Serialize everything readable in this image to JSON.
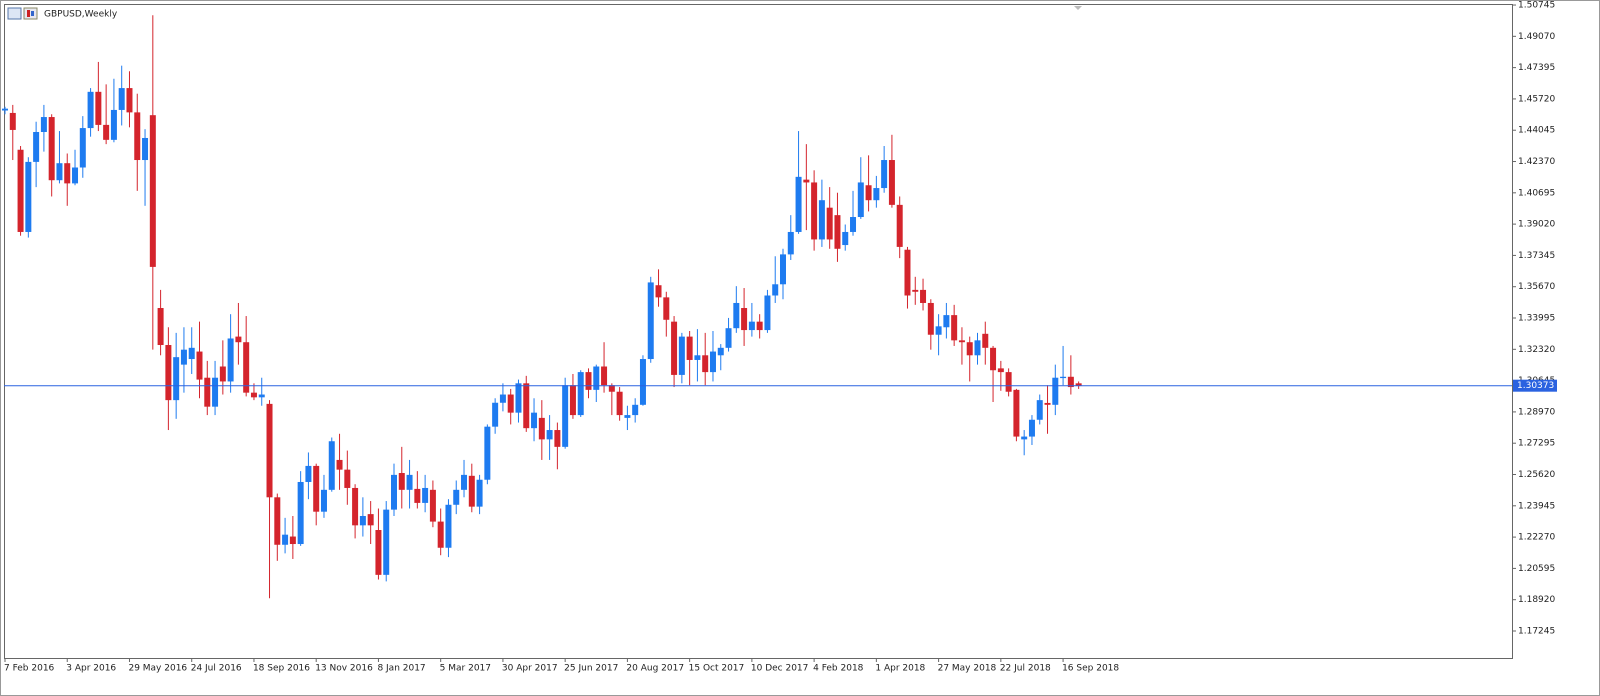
{
  "chart_data": {
    "type": "candlestick",
    "title": "GBPUSD,Weekly",
    "categories": [
      "7 Feb 2016",
      null,
      null,
      null,
      null,
      null,
      null,
      null,
      "3 Apr 2016",
      null,
      null,
      null,
      null,
      null,
      null,
      null,
      "29 May 2016",
      null,
      null,
      null,
      null,
      null,
      null,
      null,
      "24 Jul 2016",
      null,
      null,
      null,
      null,
      null,
      null,
      null,
      "18 Sep 2016",
      null,
      null,
      null,
      null,
      null,
      null,
      null,
      "13 Nov 2016",
      null,
      null,
      null,
      null,
      null,
      null,
      null,
      "8 Jan 2017",
      null,
      null,
      null,
      null,
      null,
      null,
      null,
      "5 Mar 2017",
      null,
      null,
      null,
      null,
      null,
      null,
      null,
      "30 Apr 2017",
      null,
      null,
      null,
      null,
      null,
      null,
      null,
      "25 Jun 2017",
      null,
      null,
      null,
      null,
      null,
      null,
      null,
      "20 Aug 2017",
      null,
      null,
      null,
      null,
      null,
      null,
      null,
      "15 Oct 2017",
      null,
      null,
      null,
      null,
      null,
      null,
      null,
      "10 Dec 2017",
      null,
      null,
      null,
      null,
      null,
      null,
      null,
      "4 Feb 2018",
      null,
      null,
      null,
      null,
      null,
      null,
      null,
      "1 Apr 2018",
      null,
      null,
      null,
      null,
      null,
      null,
      null,
      "27 May 2018",
      null,
      null,
      null,
      null,
      null,
      null,
      null,
      "22 Jul 2018",
      null,
      null,
      null,
      null,
      null,
      null,
      null,
      "16 Sep 2018",
      null,
      null
    ],
    "ohlc": [
      [
        1.451,
        1.453,
        1.449,
        1.452
      ],
      [
        1.4497,
        1.454,
        1.4245,
        1.4406
      ],
      [
        1.43,
        1.432,
        1.384,
        1.386
      ],
      [
        1.386,
        1.426,
        1.383,
        1.4235
      ],
      [
        1.4235,
        1.445,
        1.41,
        1.4395
      ],
      [
        1.4395,
        1.454,
        1.429,
        1.4475
      ],
      [
        1.4475,
        1.449,
        1.405,
        1.4137
      ],
      [
        1.4137,
        1.44,
        1.412,
        1.4228
      ],
      [
        1.4228,
        1.428,
        1.4,
        1.412
      ],
      [
        1.412,
        1.43,
        1.411,
        1.4205
      ],
      [
        1.4205,
        1.448,
        1.415,
        1.4416
      ],
      [
        1.4416,
        1.463,
        1.437,
        1.461
      ],
      [
        1.461,
        1.477,
        1.44,
        1.4433
      ],
      [
        1.4433,
        1.465,
        1.433,
        1.4353
      ],
      [
        1.4353,
        1.468,
        1.434,
        1.4513
      ],
      [
        1.4513,
        1.475,
        1.443,
        1.463
      ],
      [
        1.463,
        1.472,
        1.442,
        1.45
      ],
      [
        1.45,
        1.46,
        1.408,
        1.4245
      ],
      [
        1.4245,
        1.441,
        1.4,
        1.4363
      ],
      [
        1.4485,
        1.502,
        1.323,
        1.3673
      ],
      [
        1.3453,
        1.355,
        1.32,
        1.3255
      ],
      [
        1.3255,
        1.335,
        1.28,
        1.296
      ],
      [
        1.296,
        1.332,
        1.286,
        1.319
      ],
      [
        1.315,
        1.335,
        1.3,
        1.323
      ],
      [
        1.318,
        1.335,
        1.31,
        1.324
      ],
      [
        1.322,
        1.338,
        1.297,
        1.307
      ],
      [
        1.308,
        1.317,
        1.288,
        1.2925
      ],
      [
        1.2925,
        1.317,
        1.288,
        1.308
      ],
      [
        1.314,
        1.328,
        1.299,
        1.306
      ],
      [
        1.306,
        1.342,
        1.3,
        1.329
      ],
      [
        1.33,
        1.348,
        1.315,
        1.327
      ],
      [
        1.327,
        1.341,
        1.298,
        1.3
      ],
      [
        1.3,
        1.305,
        1.296,
        1.2975
      ],
      [
        1.2975,
        1.308,
        1.293,
        1.299
      ],
      [
        1.294,
        1.296,
        1.19,
        1.244
      ],
      [
        1.244,
        1.246,
        1.21,
        1.2186
      ],
      [
        1.2186,
        1.233,
        1.214,
        1.224
      ],
      [
        1.223,
        1.234,
        1.211,
        1.219
      ],
      [
        1.219,
        1.258,
        1.218,
        1.2522
      ],
      [
        1.2522,
        1.268,
        1.243,
        1.2608
      ],
      [
        1.2608,
        1.262,
        1.229,
        1.2363
      ],
      [
        1.2363,
        1.256,
        1.233,
        1.248
      ],
      [
        1.248,
        1.276,
        1.247,
        1.274
      ],
      [
        1.264,
        1.278,
        1.248,
        1.2588
      ],
      [
        1.2588,
        1.269,
        1.24,
        1.249
      ],
      [
        1.249,
        1.251,
        1.222,
        1.229
      ],
      [
        1.229,
        1.244,
        1.223,
        1.234
      ],
      [
        1.235,
        1.242,
        1.219,
        1.229
      ],
      [
        1.2265,
        1.238,
        1.2,
        1.2025
      ],
      [
        1.2025,
        1.242,
        1.199,
        1.2374
      ],
      [
        1.2374,
        1.262,
        1.234,
        1.256
      ],
      [
        1.257,
        1.271,
        1.238,
        1.248
      ],
      [
        1.248,
        1.264,
        1.238,
        1.256
      ],
      [
        1.2485,
        1.258,
        1.238,
        1.241
      ],
      [
        1.241,
        1.256,
        1.236,
        1.249
      ],
      [
        1.248,
        1.253,
        1.228,
        1.231
      ],
      [
        1.231,
        1.238,
        1.213,
        1.217
      ],
      [
        1.217,
        1.243,
        1.212,
        1.24
      ],
      [
        1.24,
        1.253,
        1.235,
        1.248
      ],
      [
        1.248,
        1.264,
        1.244,
        1.256
      ],
      [
        1.2555,
        1.262,
        1.236,
        1.239
      ],
      [
        1.239,
        1.256,
        1.235,
        1.2534
      ],
      [
        1.2534,
        1.283,
        1.251,
        1.2818
      ],
      [
        1.2818,
        1.297,
        1.278,
        1.2946
      ],
      [
        1.2946,
        1.305,
        1.29,
        1.299
      ],
      [
        1.299,
        1.302,
        1.283,
        1.2893
      ],
      [
        1.2893,
        1.307,
        1.284,
        1.305
      ],
      [
        1.305,
        1.309,
        1.279,
        1.281
      ],
      [
        1.281,
        1.297,
        1.274,
        1.2893
      ],
      [
        1.2865,
        1.296,
        1.264,
        1.275
      ],
      [
        1.275,
        1.288,
        1.264,
        1.28
      ],
      [
        1.28,
        1.284,
        1.259,
        1.271
      ],
      [
        1.271,
        1.308,
        1.27,
        1.304
      ],
      [
        1.304,
        1.31,
        1.286,
        1.288
      ],
      [
        1.288,
        1.312,
        1.287,
        1.311
      ],
      [
        1.311,
        1.313,
        1.297,
        1.3015
      ],
      [
        1.3015,
        1.315,
        1.295,
        1.314
      ],
      [
        1.314,
        1.327,
        1.3,
        1.304
      ],
      [
        1.304,
        1.305,
        1.288,
        1.3005
      ],
      [
        1.3005,
        1.303,
        1.285,
        1.288
      ],
      [
        1.2865,
        1.293,
        1.28,
        1.288
      ],
      [
        1.288,
        1.297,
        1.284,
        1.2935
      ],
      [
        1.2935,
        1.32,
        1.293,
        1.318
      ],
      [
        1.318,
        1.362,
        1.316,
        1.359
      ],
      [
        1.3575,
        1.366,
        1.346,
        1.351
      ],
      [
        1.351,
        1.354,
        1.33,
        1.339
      ],
      [
        1.338,
        1.341,
        1.303,
        1.3095
      ],
      [
        1.3095,
        1.332,
        1.305,
        1.33
      ],
      [
        1.33,
        1.333,
        1.304,
        1.3175
      ],
      [
        1.3175,
        1.334,
        1.306,
        1.32
      ],
      [
        1.32,
        1.332,
        1.304,
        1.311
      ],
      [
        1.311,
        1.333,
        1.306,
        1.322
      ],
      [
        1.32,
        1.326,
        1.312,
        1.324
      ],
      [
        1.324,
        1.34,
        1.322,
        1.3345
      ],
      [
        1.3345,
        1.357,
        1.332,
        1.348
      ],
      [
        1.3453,
        1.356,
        1.325,
        1.3335
      ],
      [
        1.3335,
        1.348,
        1.33,
        1.338
      ],
      [
        1.338,
        1.342,
        1.329,
        1.3335
      ],
      [
        1.3335,
        1.355,
        1.332,
        1.352
      ],
      [
        1.352,
        1.373,
        1.348,
        1.358
      ],
      [
        1.358,
        1.377,
        1.35,
        1.374
      ],
      [
        1.374,
        1.395,
        1.371,
        1.386
      ],
      [
        1.386,
        1.44,
        1.385,
        1.4155
      ],
      [
        1.414,
        1.433,
        1.387,
        1.4125
      ],
      [
        1.4125,
        1.419,
        1.376,
        1.382
      ],
      [
        1.382,
        1.414,
        1.378,
        1.403
      ],
      [
        1.399,
        1.41,
        1.377,
        1.382
      ],
      [
        1.395,
        1.407,
        1.37,
        1.377
      ],
      [
        1.379,
        1.39,
        1.376,
        1.386
      ],
      [
        1.386,
        1.408,
        1.384,
        1.394
      ],
      [
        1.394,
        1.426,
        1.393,
        1.4125
      ],
      [
        1.411,
        1.427,
        1.397,
        1.403
      ],
      [
        1.403,
        1.416,
        1.399,
        1.4095
      ],
      [
        1.4095,
        1.432,
        1.407,
        1.4245
      ],
      [
        1.4245,
        1.438,
        1.399,
        1.4005
      ],
      [
        1.4005,
        1.405,
        1.372,
        1.378
      ],
      [
        1.3765,
        1.378,
        1.345,
        1.352
      ],
      [
        1.355,
        1.362,
        1.347,
        1.354
      ],
      [
        1.355,
        1.361,
        1.344,
        1.348
      ],
      [
        1.348,
        1.35,
        1.323,
        1.331
      ],
      [
        1.331,
        1.342,
        1.32,
        1.3355
      ],
      [
        1.335,
        1.348,
        1.329,
        1.3415
      ],
      [
        1.3415,
        1.347,
        1.325,
        1.328
      ],
      [
        1.328,
        1.335,
        1.315,
        1.327
      ],
      [
        1.327,
        1.33,
        1.306,
        1.32
      ],
      [
        1.32,
        1.332,
        1.315,
        1.328
      ],
      [
        1.3315,
        1.338,
        1.315,
        1.324
      ],
      [
        1.324,
        1.325,
        1.295,
        1.312
      ],
      [
        1.313,
        1.317,
        1.301,
        1.311
      ],
      [
        1.311,
        1.313,
        1.298,
        1.3005
      ],
      [
        1.3015,
        1.302,
        1.274,
        1.2765
      ],
      [
        1.275,
        1.28,
        1.2665,
        1.2765
      ],
      [
        1.2765,
        1.288,
        1.272,
        1.2855
      ],
      [
        1.2855,
        1.299,
        1.283,
        1.296
      ],
      [
        1.2945,
        1.304,
        1.278,
        1.2935
      ],
      [
        1.2935,
        1.315,
        1.288,
        1.308
      ],
      [
        1.3078,
        1.325,
        1.304,
        1.3085
      ],
      [
        1.3085,
        1.32,
        1.299,
        1.303
      ],
      [
        1.305,
        1.306,
        1.302,
        1.3037
      ]
    ],
    "up_color": "#1e7bf0",
    "down_color": "#d4242c",
    "current_price": 1.30373,
    "current_price_color": "#2a62e0",
    "ylim": [
      1.158,
      1.508
    ],
    "yticks": [
      1.50745,
      {
        "value": 1.4907,
        "label": "1.49070"
      },
      1.47395,
      {
        "value": 1.4572,
        "label": "1.45720"
      },
      1.44045,
      {
        "value": 1.4237,
        "label": "1.42370"
      },
      1.40695,
      {
        "value": 1.3902,
        "label": "1.39020"
      },
      1.37345,
      {
        "value": 1.3567,
        "label": "1.35670"
      },
      1.33995,
      {
        "value": 1.3232,
        "label": "1.32320"
      },
      1.30645,
      {
        "value": 1.2897,
        "label": "1.28970"
      },
      1.27295,
      {
        "value": 1.2562,
        "label": "1.25620"
      },
      1.23945,
      {
        "value": 1.2227,
        "label": "1.22270"
      },
      1.20595,
      {
        "value": 1.1892,
        "label": "1.18920"
      },
      1.17245
    ]
  }
}
